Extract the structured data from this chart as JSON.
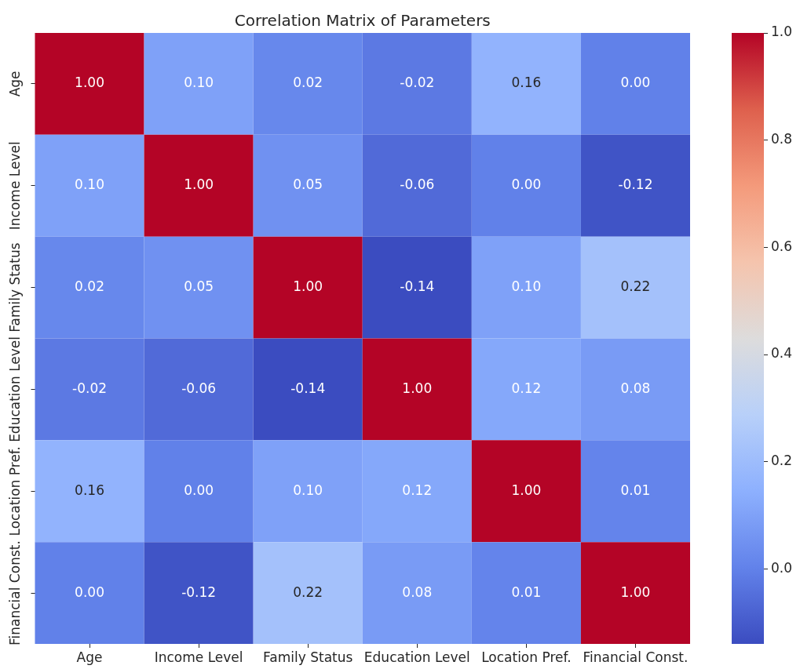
{
  "chart_data": {
    "type": "heatmap",
    "title": "Correlation Matrix of Parameters",
    "categories": [
      "Age",
      "Income Level",
      "Family Status",
      "Education Level",
      "Location Pref.",
      "Financial Const."
    ],
    "y_categories": [
      "Age",
      "Income Level",
      "Family Status",
      "Education Level",
      "Location Pref.",
      "Financial Const."
    ],
    "cells": [
      [
        1.0,
        0.1,
        0.02,
        -0.02,
        0.16,
        0.0
      ],
      [
        0.1,
        1.0,
        0.05,
        -0.06,
        0.0,
        -0.12
      ],
      [
        0.02,
        0.05,
        1.0,
        -0.14,
        0.1,
        0.22
      ],
      [
        -0.02,
        -0.06,
        -0.14,
        1.0,
        0.12,
        0.08
      ],
      [
        0.16,
        0.0,
        0.1,
        0.12,
        1.0,
        0.01
      ],
      [
        0.0,
        -0.12,
        0.22,
        0.08,
        0.01,
        1.0
      ]
    ],
    "cell_labels": [
      [
        "1.00",
        "0.10",
        "0.02",
        "-0.02",
        "0.16",
        "0.00"
      ],
      [
        "0.10",
        "1.00",
        "0.05",
        "-0.06",
        "0.00",
        "-0.12"
      ],
      [
        "0.02",
        "0.05",
        "1.00",
        "-0.14",
        "0.10",
        "0.22"
      ],
      [
        "-0.02",
        "-0.06",
        "-0.14",
        "1.00",
        "0.12",
        "0.08"
      ],
      [
        "0.16",
        "0.00",
        "0.10",
        "0.12",
        "1.00",
        "0.01"
      ],
      [
        "0.00",
        "-0.12",
        "0.22",
        "0.08",
        "0.01",
        "1.00"
      ]
    ],
    "clim": [
      -0.14,
      1.0
    ],
    "cticks": [
      {
        "value": 0,
        "label": "0.0"
      },
      0.2,
      0.4,
      0.6,
      0.8,
      {
        "value": 1,
        "label": "1.0"
      }
    ]
  }
}
